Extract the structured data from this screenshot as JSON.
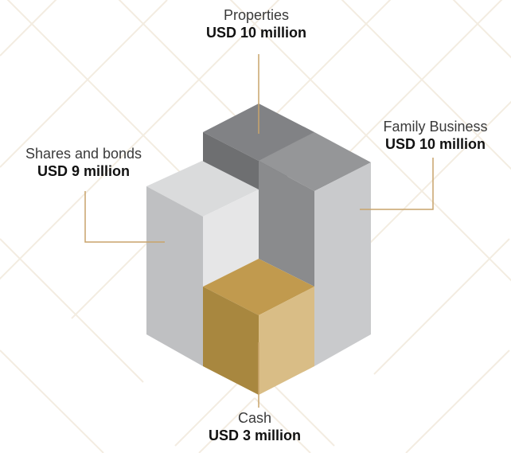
{
  "assets": {
    "properties": {
      "name": "Properties",
      "value": "USD 10 million"
    },
    "family_business": {
      "name": "Family Business",
      "value": "USD 10 million"
    },
    "shares_and_bonds": {
      "name": "Shares and bonds",
      "value": "USD 9 million"
    },
    "cash": {
      "name": "Cash",
      "value": "USD 3 million"
    }
  },
  "colors": {
    "background_pattern": "#f3ece1",
    "gold_line": "#c9a46b",
    "cash_left": "#a8873f",
    "cash_right": "#d9bd86",
    "cash_top": "#c19a4e",
    "dark_gray": "#6e6f71",
    "mid_gray": "#8c8d8f",
    "light_gray": "#c8c9cb"
  }
}
